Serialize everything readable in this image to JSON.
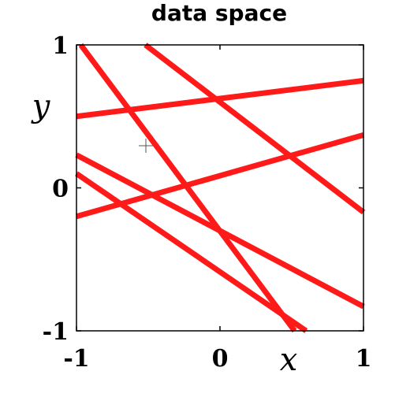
{
  "chart_data": {
    "type": "line",
    "title": "data space",
    "xlabel": "x",
    "ylabel": "y",
    "xlim": [
      -1,
      1
    ],
    "ylim": [
      -1,
      1
    ],
    "xticks": [
      -1,
      0,
      1
    ],
    "yticks": [
      -1,
      0,
      1
    ],
    "xtick_labels": [
      "-1",
      "0",
      "1"
    ],
    "ytick_labels": [
      "-1",
      "0",
      "1"
    ],
    "grid": false,
    "line_color": "#ff1a1a",
    "series": [
      {
        "x": [
          -1,
          1
        ],
        "y": [
          0.5,
          0.75
        ]
      },
      {
        "x": [
          -0.52,
          1
        ],
        "y": [
          1.0,
          -0.17
        ]
      },
      {
        "x": [
          -1,
          1
        ],
        "y": [
          -0.2,
          0.37
        ]
      },
      {
        "x": [
          -1,
          1
        ],
        "y": [
          0.23,
          -0.83
        ]
      },
      {
        "x": [
          -1,
          0.6
        ],
        "y": [
          0.1,
          -1.0
        ]
      },
      {
        "x": [
          -0.97,
          0.52
        ],
        "y": [
          1.0,
          -1.0
        ]
      }
    ]
  }
}
